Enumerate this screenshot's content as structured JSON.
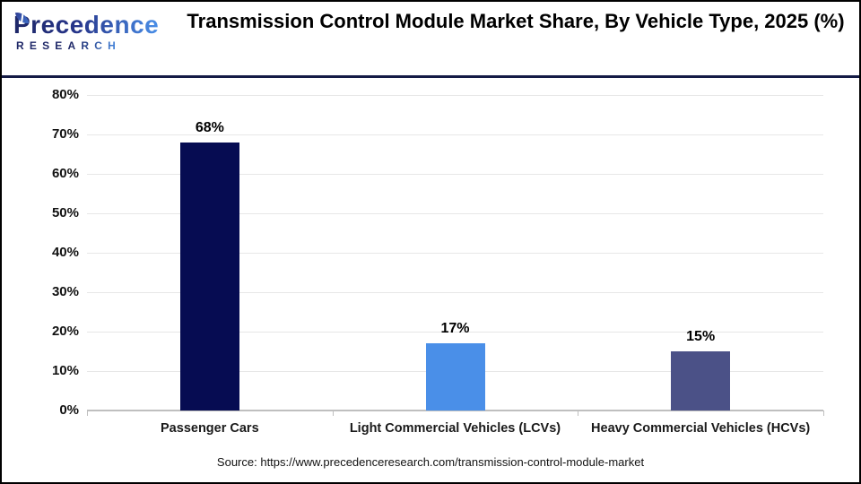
{
  "logo": {
    "brand": "Precedence",
    "subtitle": "RESEARCH"
  },
  "header": {
    "title": "Transmission Control Module Market Share, By Vehicle Type, 2025 (%)"
  },
  "chart_data": {
    "type": "bar",
    "title": "Transmission Control Module Market Share, By Vehicle Type, 2025 (%)",
    "categories": [
      "Passenger Cars",
      "Light Commercial Vehicles (LCVs)",
      "Heavy Commercial Vehicles (HCVs)"
    ],
    "values": [
      68,
      17,
      15
    ],
    "value_labels": [
      "68%",
      "17%",
      "15%"
    ],
    "bar_colors": [
      "#060C52",
      "#4A8FE8",
      "#4B5187"
    ],
    "ylim": [
      0,
      80
    ],
    "yticks": [
      0,
      10,
      20,
      30,
      40,
      50,
      60,
      70,
      80
    ],
    "ytick_labels": [
      "0%",
      "10%",
      "20%",
      "30%",
      "40%",
      "50%",
      "60%",
      "70%",
      "80%"
    ],
    "xlabel": "",
    "ylabel": "",
    "grid": true,
    "legend": false,
    "gridline_color": "#E7E7E7",
    "axis_color": "#BFBFBF"
  },
  "footer": {
    "source": "Source: https://www.precedenceresearch.com/transmission-control-module-market"
  }
}
